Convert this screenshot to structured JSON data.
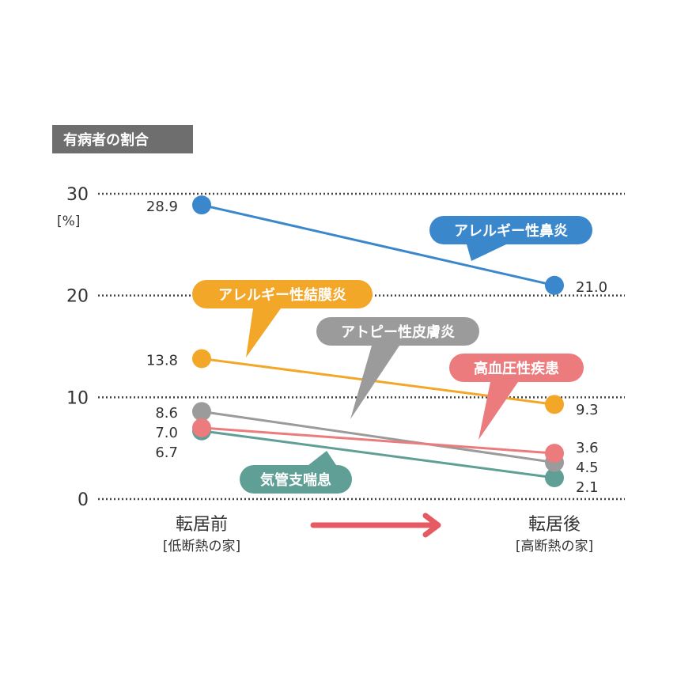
{
  "chart_data": {
    "type": "line",
    "title": "有病者の割合",
    "ylabel": "",
    "unit_label": "[%]",
    "ylim": [
      0,
      30
    ],
    "yticks": [
      0,
      10,
      20,
      30
    ],
    "grid": "dotted-horizontal",
    "categories": [
      {
        "label": "転居前",
        "sub": "[低断熱の家]"
      },
      {
        "label": "転居後",
        "sub": "[高断熱の家]"
      }
    ],
    "series": [
      {
        "name": "アレルギー性鼻炎",
        "values": [
          28.9,
          21.0
        ],
        "value_labels": [
          "28.9",
          "21.0"
        ],
        "color": "#3b87cc"
      },
      {
        "name": "アレルギー性結膜炎",
        "values": [
          13.8,
          9.3
        ],
        "value_labels": [
          "13.8",
          "9.3"
        ],
        "color": "#f3a728"
      },
      {
        "name": "アトピー性皮膚炎",
        "values": [
          8.6,
          3.6
        ],
        "value_labels": [
          "8.6",
          "3.6"
        ],
        "color": "#9b9b9b"
      },
      {
        "name": "高血圧性疾患",
        "values": [
          7.0,
          4.5
        ],
        "value_labels": [
          "7.0",
          "4.5"
        ],
        "color": "#ec7b7e"
      },
      {
        "name": "気管支喘息",
        "values": [
          6.7,
          2.1
        ],
        "value_labels": [
          "6.7",
          "2.1"
        ],
        "color": "#5f9f96"
      }
    ],
    "arrow_color": "#e65a63"
  }
}
